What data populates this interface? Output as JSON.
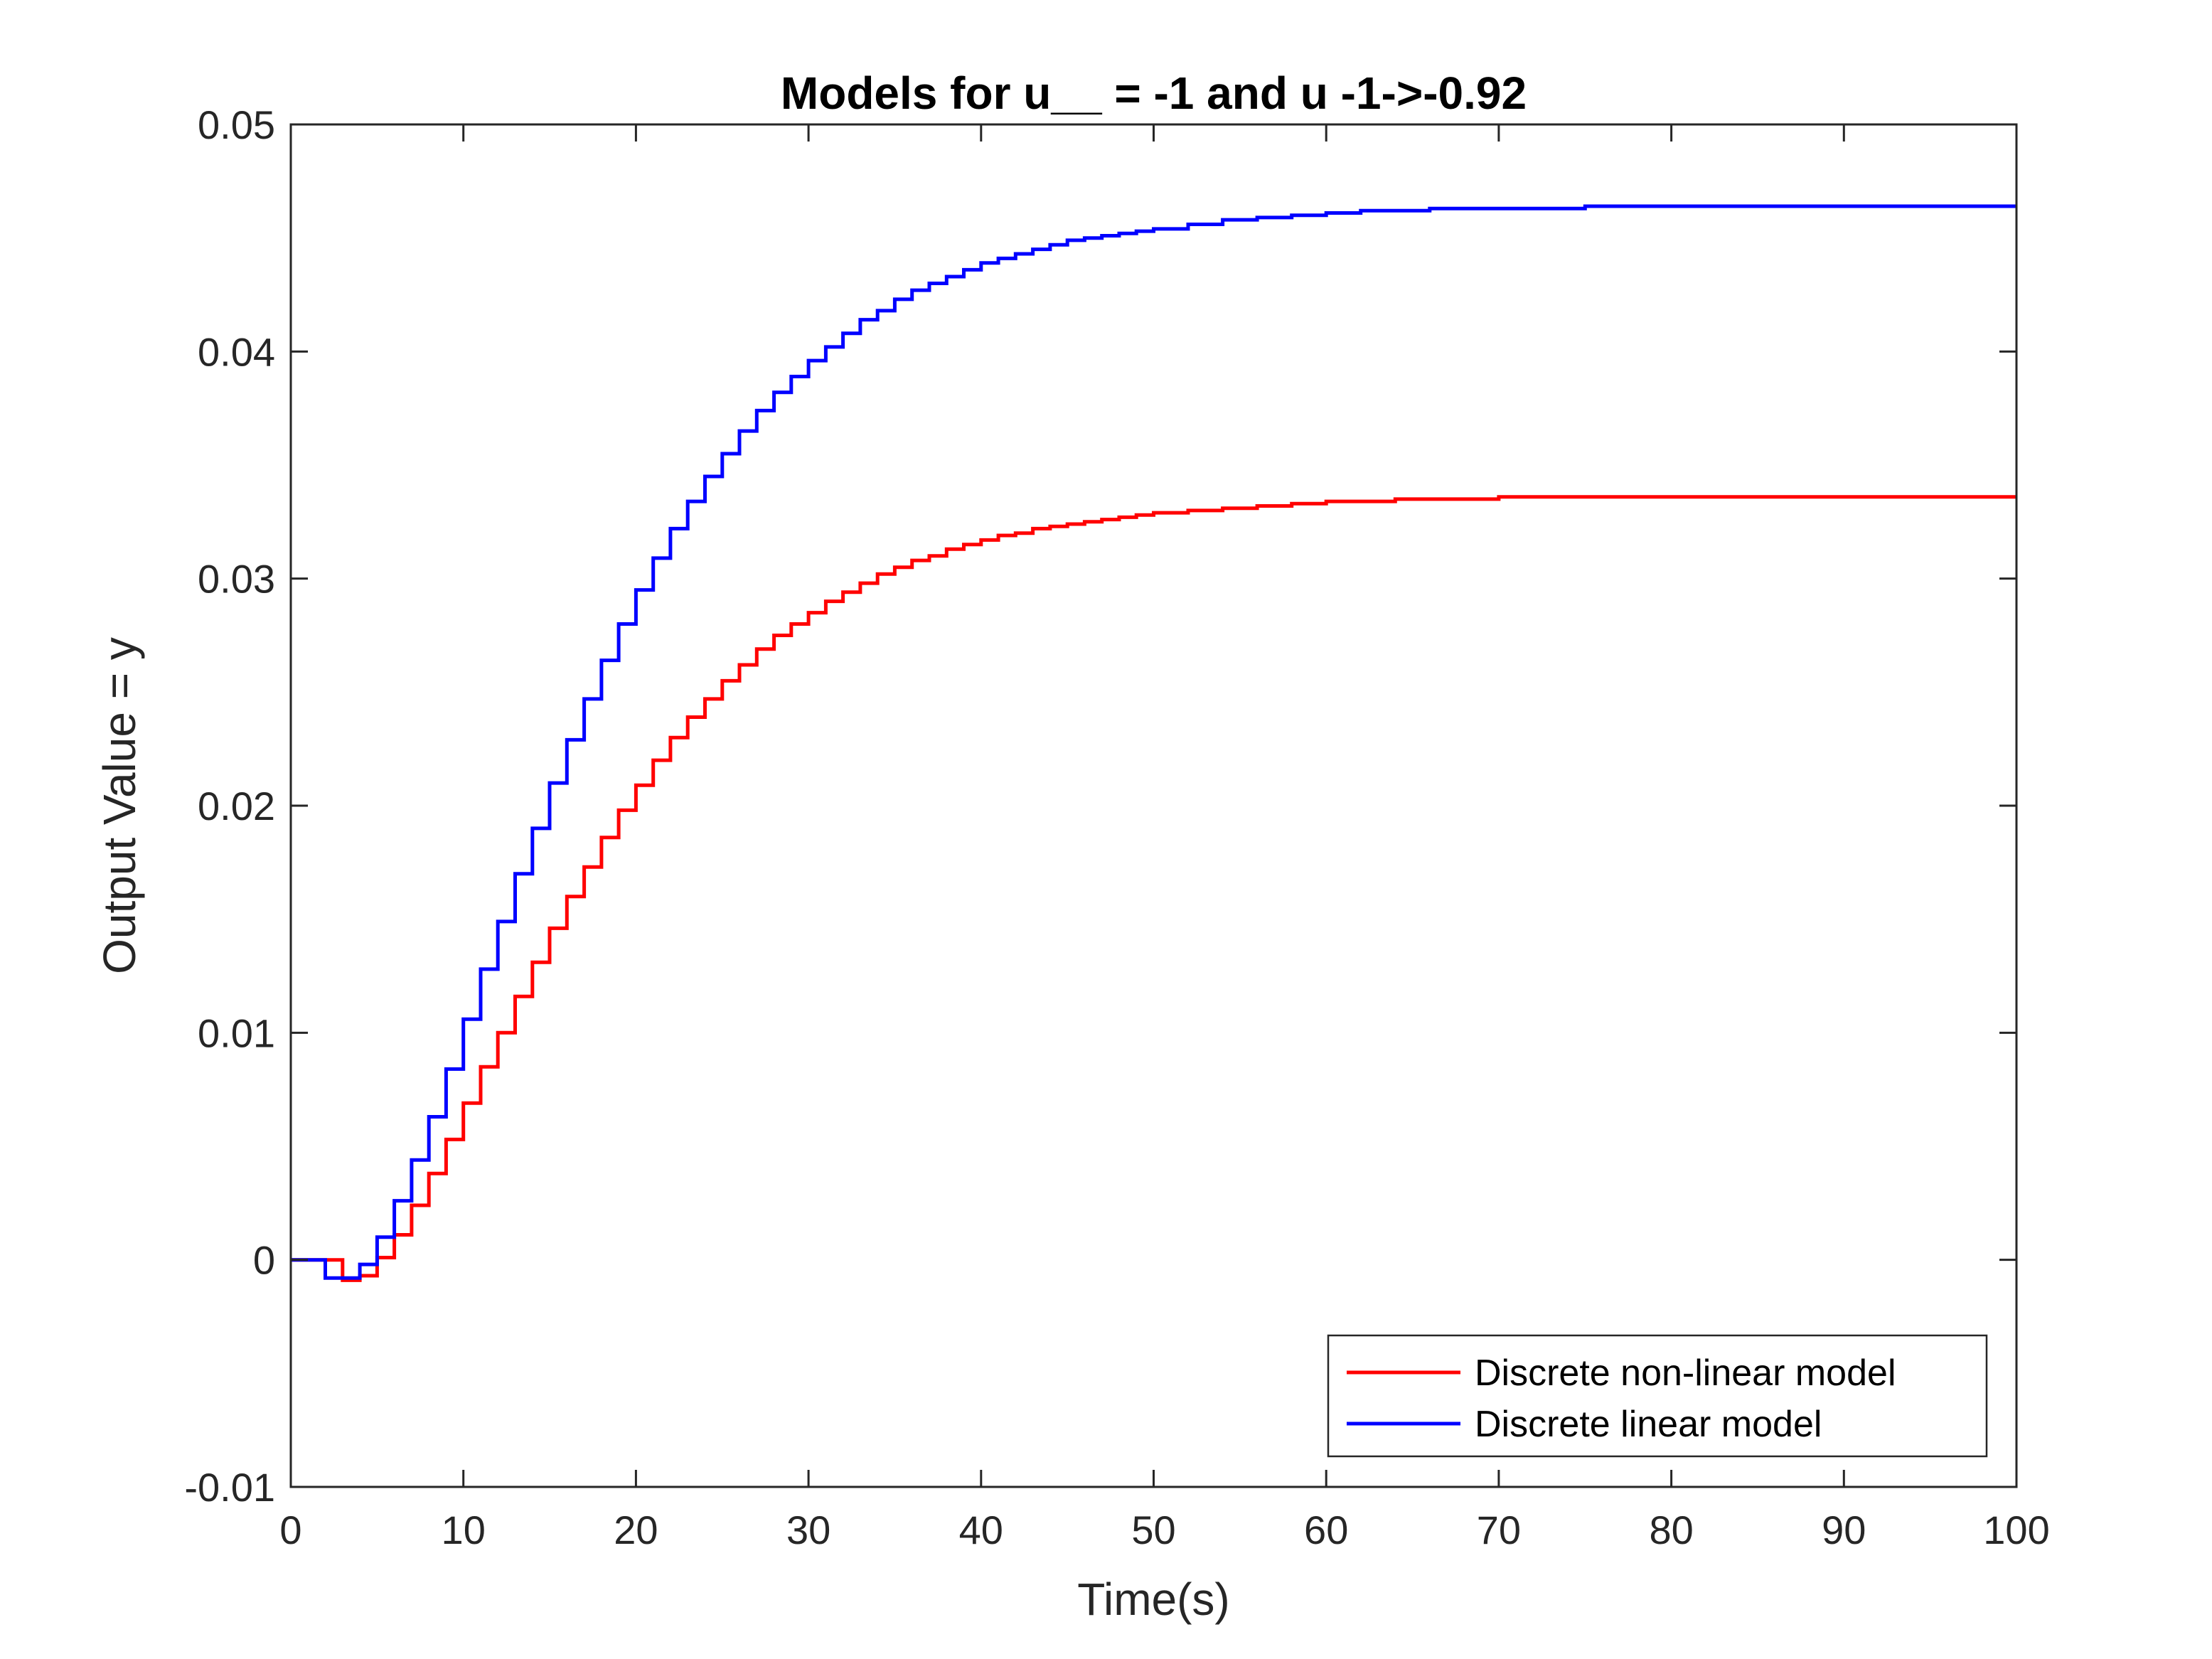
{
  "chart_data": {
    "type": "line",
    "step": true,
    "title": "Models for u__ = -1 and u -1->-0.92",
    "xlabel": "Time(s)",
    "ylabel": "Output Value = y",
    "xlim": [
      0,
      100
    ],
    "ylim": [
      -0.01,
      0.05
    ],
    "xticks": [
      0,
      10,
      20,
      30,
      40,
      50,
      60,
      70,
      80,
      90,
      100
    ],
    "xtick_labels": [
      "0",
      "10",
      "20",
      "30",
      "40",
      "50",
      "60",
      "70",
      "80",
      "90",
      "100"
    ],
    "yticks": [
      -0.01,
      0,
      0.01,
      0.02,
      0.03,
      0.04,
      0.05
    ],
    "ytick_labels": [
      "-0.01",
      "0",
      "0.01",
      "0.02",
      "0.03",
      "0.04",
      "0.05"
    ],
    "grid": false,
    "legend_position": "bottom-right",
    "series": [
      {
        "name": "Discrete non-linear model",
        "color": "#ff0000",
        "x": [
          0,
          1,
          2,
          3,
          4,
          5,
          6,
          7,
          8,
          9,
          10,
          11,
          12,
          13,
          14,
          15,
          16,
          17,
          18,
          19,
          20,
          21,
          22,
          23,
          24,
          25,
          26,
          27,
          28,
          29,
          30,
          31,
          32,
          33,
          34,
          35,
          36,
          37,
          38,
          39,
          40,
          41,
          42,
          43,
          44,
          45,
          46,
          47,
          48,
          49,
          50,
          52,
          54,
          56,
          58,
          60,
          62,
          64,
          66,
          68,
          70,
          75,
          80,
          85,
          90,
          95,
          100
        ],
        "y": [
          0,
          0,
          0,
          -0.0009,
          -0.0007,
          0.0001,
          0.0011,
          0.0024,
          0.0038,
          0.0053,
          0.0069,
          0.0085,
          0.01,
          0.0116,
          0.0131,
          0.0146,
          0.016,
          0.0173,
          0.0186,
          0.0198,
          0.0209,
          0.022,
          0.023,
          0.0239,
          0.0247,
          0.0255,
          0.0262,
          0.0269,
          0.0275,
          0.028,
          0.0285,
          0.029,
          0.0294,
          0.0298,
          0.0302,
          0.0305,
          0.0308,
          0.031,
          0.0313,
          0.0315,
          0.0317,
          0.0319,
          0.032,
          0.0322,
          0.0323,
          0.0324,
          0.0325,
          0.0326,
          0.0327,
          0.0328,
          0.0329,
          0.033,
          0.0331,
          0.0332,
          0.0333,
          0.0334,
          0.0334,
          0.0335,
          0.0335,
          0.0335,
          0.0336,
          0.0336,
          0.0336,
          0.0336,
          0.0336,
          0.0336,
          0.0336
        ]
      },
      {
        "name": "Discrete linear model",
        "color": "#0000ff",
        "x": [
          0,
          1,
          2,
          3,
          4,
          5,
          6,
          7,
          8,
          9,
          10,
          11,
          12,
          13,
          14,
          15,
          16,
          17,
          18,
          19,
          20,
          21,
          22,
          23,
          24,
          25,
          26,
          27,
          28,
          29,
          30,
          31,
          32,
          33,
          34,
          35,
          36,
          37,
          38,
          39,
          40,
          41,
          42,
          43,
          44,
          45,
          46,
          47,
          48,
          49,
          50,
          52,
          54,
          56,
          58,
          60,
          62,
          64,
          66,
          68,
          70,
          75,
          80,
          85,
          90,
          95,
          100
        ],
        "y": [
          0,
          0,
          -0.0008,
          -0.0008,
          -0.0002,
          0.001,
          0.0026,
          0.0044,
          0.0063,
          0.0084,
          0.0106,
          0.0128,
          0.0149,
          0.017,
          0.019,
          0.021,
          0.0229,
          0.0247,
          0.0264,
          0.028,
          0.0295,
          0.0309,
          0.0322,
          0.0334,
          0.0345,
          0.0355,
          0.0365,
          0.0374,
          0.0382,
          0.0389,
          0.0396,
          0.0402,
          0.0408,
          0.0414,
          0.0418,
          0.0423,
          0.0427,
          0.043,
          0.0433,
          0.0436,
          0.0439,
          0.0441,
          0.0443,
          0.0445,
          0.0447,
          0.0449,
          0.045,
          0.0451,
          0.0452,
          0.0453,
          0.0454,
          0.0456,
          0.0458,
          0.0459,
          0.046,
          0.0461,
          0.0462,
          0.0462,
          0.0463,
          0.0463,
          0.0463,
          0.0464,
          0.0464,
          0.0464,
          0.0464,
          0.0464,
          0.0464
        ]
      }
    ]
  }
}
